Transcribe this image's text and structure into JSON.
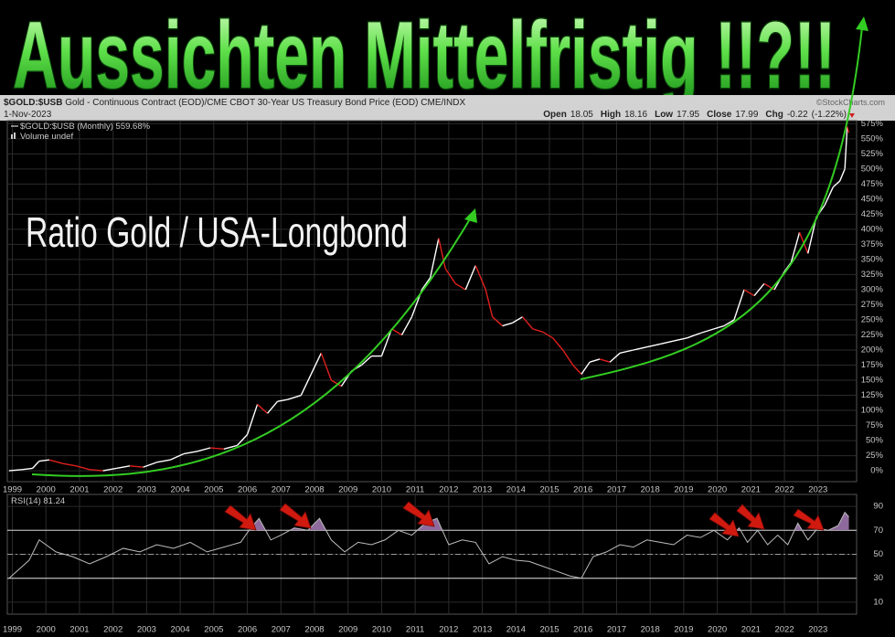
{
  "headline": "Aussichten Mittelfristig !!?!!",
  "header": {
    "symbol": "$GOLD:$USB",
    "description": "Gold - Continuous Contract (EOD)/CME CBOT 30-Year US Treasury Bond Price (EOD)",
    "exchange": "CME/INDX",
    "date": "1-Nov-2023",
    "quote": [
      {
        "label": "Open",
        "value": 18.05
      },
      {
        "label": "High",
        "value": 18.16
      },
      {
        "label": "Low",
        "value": 17.95
      },
      {
        "label": "Close",
        "value": 17.99
      },
      {
        "label": "Chg",
        "value": -0.22
      }
    ],
    "change_note": "(-1.22%)",
    "watermark": "©StockCharts.com"
  },
  "chart_data": [
    {
      "type": "line",
      "annotation": "Ratio Gold / USA-Longbond",
      "volume_label": "Volume undef",
      "x": [
        1998.9,
        1999.3,
        1999.6,
        1999.8,
        2000.1,
        2000.5,
        2000.9,
        2001.3,
        2001.7,
        2002.1,
        2002.5,
        2002.9,
        2003.3,
        2003.7,
        2004.1,
        2004.5,
        2004.9,
        2005.3,
        2005.7,
        2006.0,
        2006.3,
        2006.6,
        2006.9,
        2007.2,
        2007.6,
        2007.9,
        2008.2,
        2008.5,
        2008.8,
        2009.1,
        2009.4,
        2009.7,
        2010.0,
        2010.3,
        2010.6,
        2010.9,
        2011.2,
        2011.45,
        2011.7,
        2011.9,
        2012.2,
        2012.5,
        2012.8,
        2013.1,
        2013.3,
        2013.6,
        2013.9,
        2014.2,
        2014.5,
        2014.8,
        2015.1,
        2015.4,
        2015.7,
        2015.95,
        2016.2,
        2016.5,
        2016.8,
        2017.1,
        2017.5,
        2017.9,
        2018.3,
        2018.7,
        2019.1,
        2019.5,
        2019.9,
        2020.2,
        2020.5,
        2020.8,
        2021.1,
        2021.4,
        2021.7,
        2022.0,
        2022.2,
        2022.45,
        2022.7,
        2022.95,
        2023.2,
        2023.45,
        2023.65,
        2023.8,
        2023.87,
        2023.92
      ],
      "series": [
        {
          "name": "$GOLD:$USB (Monthly)",
          "up_color": "#ffffff",
          "down_color": "#e0201c",
          "last_value_label": "559.68%",
          "values": [
            0,
            2,
            4,
            16,
            18,
            12,
            8,
            2,
            0,
            4,
            8,
            6,
            14,
            18,
            28,
            32,
            38,
            36,
            42,
            60,
            110,
            95,
            115,
            118,
            125,
            160,
            195,
            150,
            140,
            165,
            175,
            190,
            190,
            235,
            225,
            255,
            300,
            320,
            385,
            335,
            310,
            300,
            340,
            300,
            255,
            240,
            245,
            255,
            235,
            230,
            220,
            200,
            175,
            160,
            180,
            185,
            180,
            195,
            200,
            205,
            210,
            215,
            220,
            228,
            235,
            240,
            250,
            300,
            290,
            310,
            300,
            330,
            345,
            395,
            360,
            420,
            440,
            470,
            480,
            500,
            570,
            559.68
          ]
        }
      ],
      "xlim": [
        1998.85,
        2024.15
      ],
      "xticks": [
        1999,
        2000,
        2001,
        2002,
        2003,
        2004,
        2005,
        2006,
        2007,
        2008,
        2009,
        2010,
        2011,
        2012,
        2013,
        2014,
        2015,
        2016,
        2017,
        2018,
        2019,
        2020,
        2021,
        2022,
        2023
      ],
      "ylim": [
        -18,
        580
      ],
      "yticks": [
        {
          "value": 0,
          "label": "0%"
        },
        {
          "value": 25,
          "label": "25%"
        },
        {
          "value": 50,
          "label": "50%"
        },
        {
          "value": 75,
          "label": "75%"
        },
        {
          "value": 100,
          "label": "100%"
        },
        {
          "value": 125,
          "label": "125%"
        },
        {
          "value": 150,
          "label": "150%"
        },
        {
          "value": 175,
          "label": "175%"
        },
        {
          "value": 200,
          "label": "200%"
        },
        {
          "value": 225,
          "label": "225%"
        },
        {
          "value": 250,
          "label": "250%"
        },
        {
          "value": 275,
          "label": "275%"
        },
        {
          "value": 300,
          "label": "300%"
        },
        {
          "value": 325,
          "label": "325%"
        },
        {
          "value": 350,
          "label": "350%"
        },
        {
          "value": 375,
          "label": "375%"
        },
        {
          "value": 400,
          "label": "400%"
        },
        {
          "value": 425,
          "label": "425%"
        },
        {
          "value": 450,
          "label": "450%"
        },
        {
          "value": 475,
          "label": "475%"
        },
        {
          "value": 500,
          "label": "500%"
        },
        {
          "value": 525,
          "label": "525%"
        },
        {
          "value": 550,
          "label": "550%"
        },
        {
          "value": 575,
          "label": "575%"
        }
      ],
      "grid": true
    },
    {
      "type": "line",
      "x": [
        1998.9,
        1999.5,
        1999.8,
        2000.3,
        2000.8,
        2001.3,
        2001.8,
        2002.3,
        2002.8,
        2003.3,
        2003.8,
        2004.3,
        2004.8,
        2005.3,
        2005.8,
        2006.1,
        2006.35,
        2006.7,
        2007.0,
        2007.4,
        2007.8,
        2008.15,
        2008.5,
        2008.9,
        2009.3,
        2009.7,
        2010.1,
        2010.5,
        2010.9,
        2011.3,
        2011.65,
        2012.0,
        2012.4,
        2012.8,
        2013.2,
        2013.6,
        2014.0,
        2014.4,
        2014.8,
        2015.2,
        2015.6,
        2015.95,
        2016.3,
        2016.7,
        2017.1,
        2017.5,
        2017.9,
        2018.3,
        2018.7,
        2019.1,
        2019.5,
        2019.9,
        2020.3,
        2020.65,
        2020.9,
        2021.2,
        2021.5,
        2021.8,
        2022.1,
        2022.4,
        2022.7,
        2023.0,
        2023.3,
        2023.6,
        2023.8,
        2023.92
      ],
      "series": [
        {
          "name": "RSI(14)",
          "color": "#bdbdbd",
          "overbought_fill": "#8e6a9c",
          "values": [
            30,
            45,
            62,
            52,
            48,
            42,
            48,
            55,
            52,
            58,
            55,
            60,
            52,
            56,
            60,
            72,
            80,
            62,
            66,
            72,
            70,
            80,
            62,
            52,
            60,
            58,
            62,
            70,
            66,
            76,
            80,
            58,
            62,
            60,
            42,
            48,
            45,
            44,
            40,
            36,
            32,
            30,
            48,
            52,
            58,
            56,
            62,
            60,
            58,
            66,
            64,
            70,
            62,
            72,
            60,
            70,
            58,
            66,
            58,
            76,
            62,
            72,
            70,
            74,
            85,
            81.24
          ]
        }
      ],
      "xlim": [
        1998.85,
        2024.15
      ],
      "xticks": [
        1999,
        2000,
        2001,
        2002,
        2003,
        2004,
        2005,
        2006,
        2007,
        2008,
        2009,
        2010,
        2011,
        2012,
        2013,
        2014,
        2015,
        2016,
        2017,
        2018,
        2019,
        2020,
        2021,
        2022,
        2023
      ],
      "ylim": [
        0,
        100
      ],
      "yticks": [
        10,
        30,
        50,
        70,
        90
      ],
      "reference_lines": [
        {
          "value": 70,
          "style": "solid"
        },
        {
          "value": 50,
          "style": "dashed"
        },
        {
          "value": 30,
          "style": "solid"
        }
      ],
      "grid": true
    }
  ]
}
